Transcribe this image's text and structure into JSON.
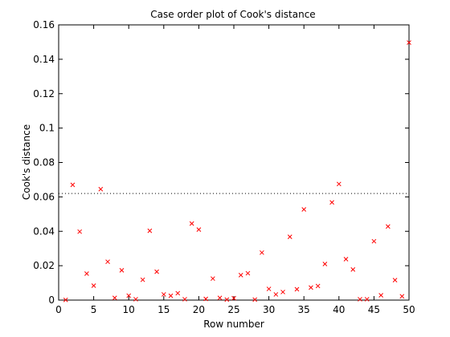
{
  "window": {
    "background": "#ffffff"
  },
  "chart_data": {
    "type": "scatter",
    "title": "Case order plot of Cook's distance",
    "xlabel": "Row number",
    "ylabel": "Cook's distance",
    "xlim": [
      0,
      50
    ],
    "ylim": [
      0,
      0.16
    ],
    "xticks": [
      0,
      5,
      10,
      15,
      20,
      25,
      30,
      35,
      40,
      45,
      50
    ],
    "xtick_labels": [
      "0",
      "5",
      "10",
      "15",
      "20",
      "25",
      "30",
      "35",
      "40",
      "45",
      "50"
    ],
    "yticks": [
      0,
      0.02,
      0.04,
      0.06,
      0.08,
      0.1,
      0.12,
      0.14,
      0.16
    ],
    "ytick_labels": [
      "0",
      "0.02",
      "0.04",
      "0.06",
      "0.08",
      "0.1",
      "0.12",
      "0.14",
      "0.16"
    ],
    "grid": false,
    "marker": "x",
    "marker_color": "#ff0000",
    "reference_line": {
      "y": 0.062,
      "style": "dotted",
      "color": "#000000"
    },
    "series": [
      {
        "x": [
          1,
          2,
          3,
          4,
          5,
          6,
          7,
          8,
          9,
          10,
          11,
          12,
          13,
          14,
          15,
          16,
          17,
          18,
          19,
          20,
          21,
          22,
          23,
          24,
          25,
          26,
          27,
          28,
          29,
          30,
          31,
          32,
          33,
          34,
          35,
          36,
          37,
          38,
          39,
          40,
          41,
          42,
          43,
          44,
          45,
          46,
          47,
          48,
          49,
          50
        ],
        "y": [
          0.0001,
          0.067,
          0.0398,
          0.0154,
          0.0084,
          0.0645,
          0.0223,
          0.0013,
          0.0173,
          0.0026,
          0.0005,
          0.0118,
          0.0403,
          0.0165,
          0.0033,
          0.0025,
          0.004,
          0.0005,
          0.0445,
          0.041,
          0.0007,
          0.0125,
          0.0013,
          0.0003,
          0.0011,
          0.0145,
          0.0156,
          0.0003,
          0.0276,
          0.0065,
          0.0033,
          0.0047,
          0.0368,
          0.0063,
          0.0527,
          0.0073,
          0.0082,
          0.021,
          0.0568,
          0.0675,
          0.0238,
          0.0178,
          0.0005,
          0.0005,
          0.0342,
          0.0028,
          0.0428,
          0.0116,
          0.0022,
          0.1497
        ]
      }
    ]
  }
}
